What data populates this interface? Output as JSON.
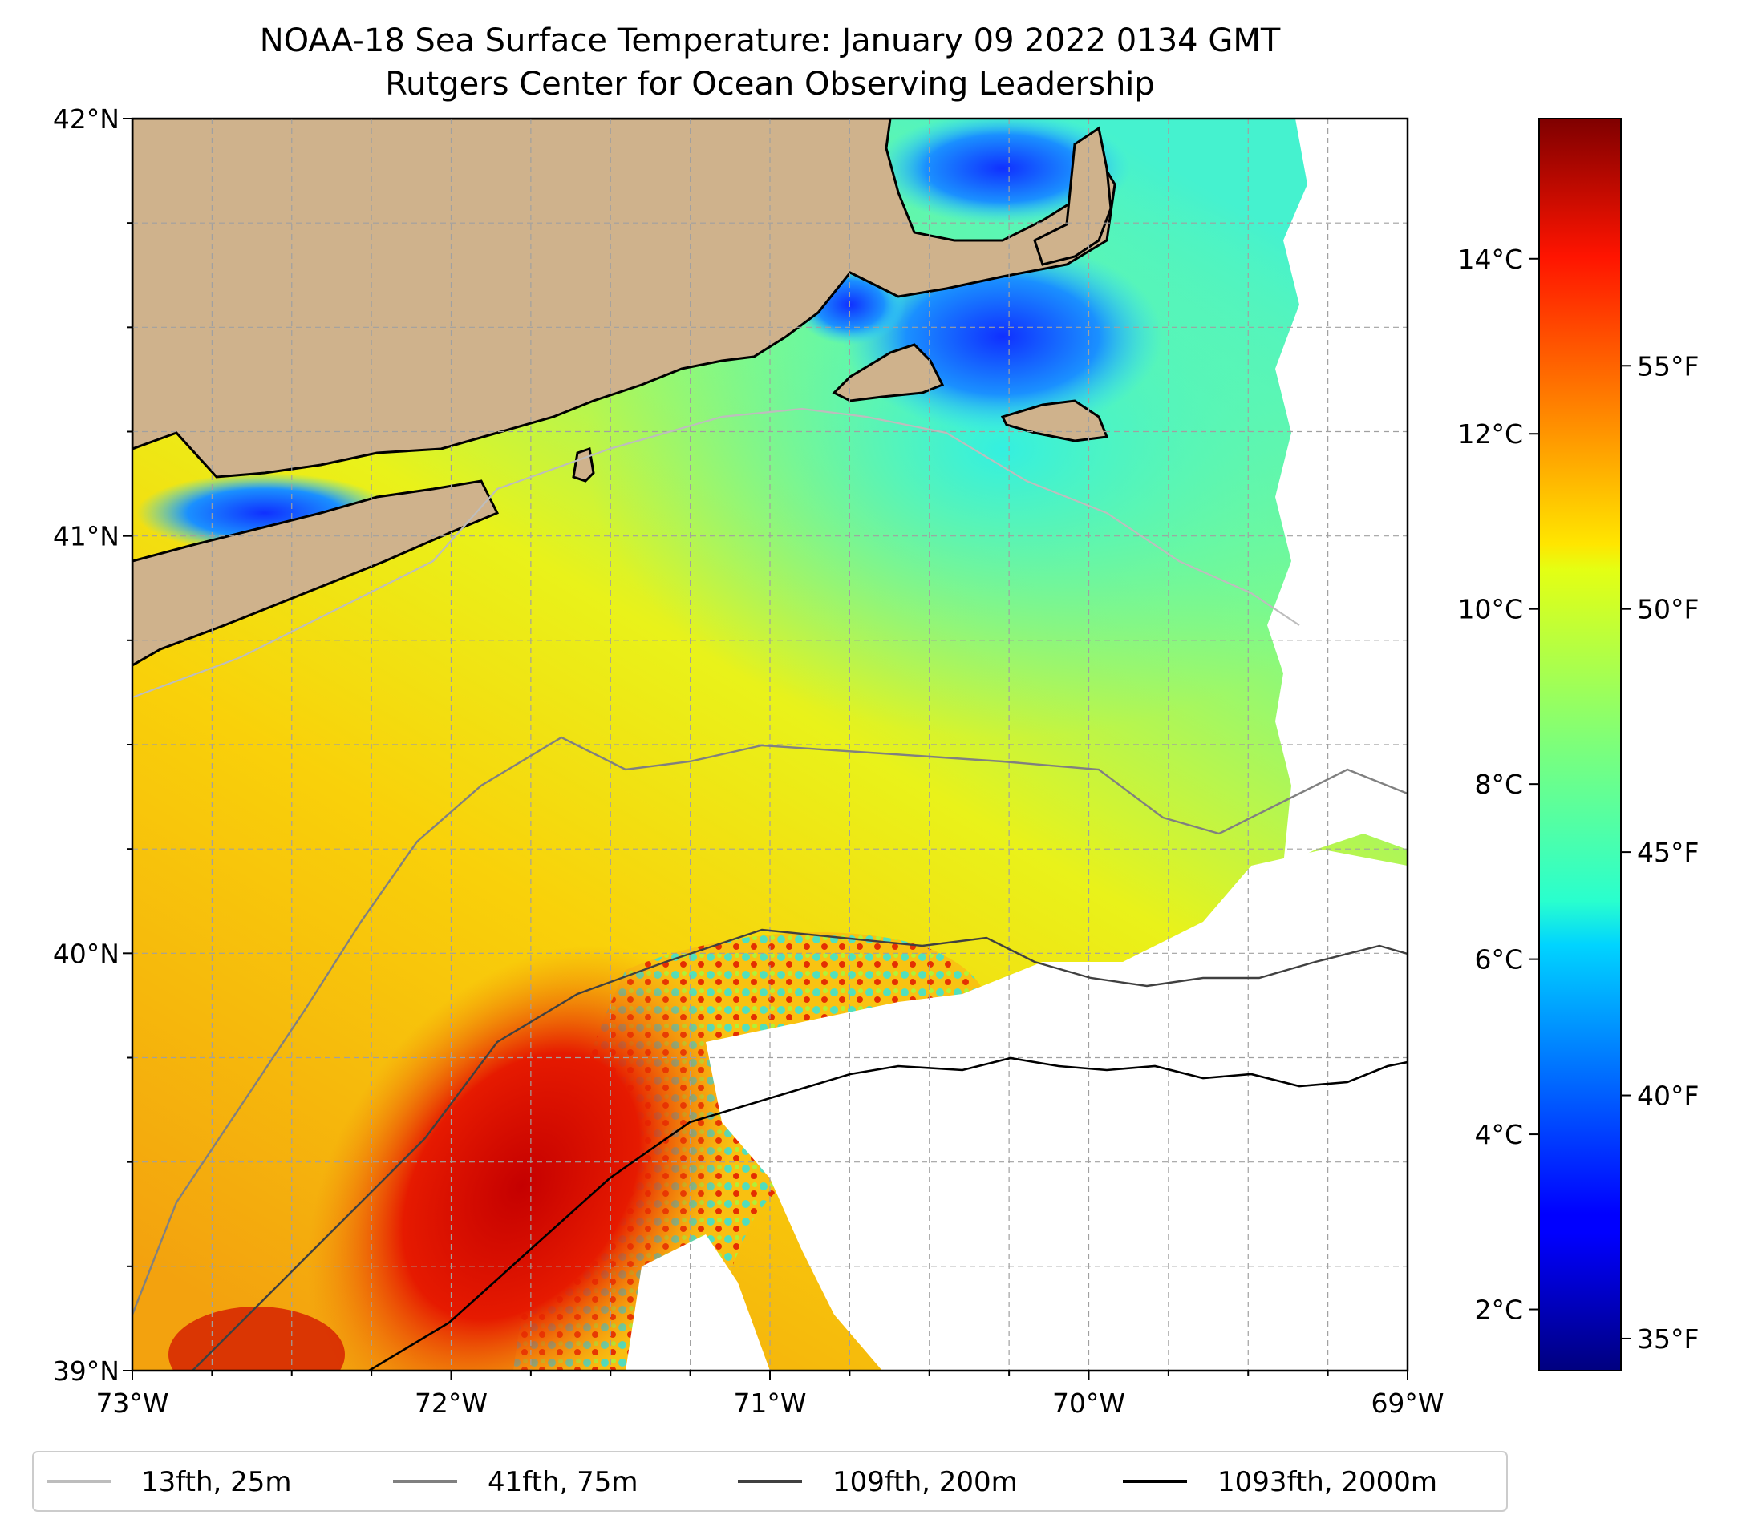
{
  "title": {
    "line1": "NOAA-18 Sea Surface Temperature: January 09 2022 0134 GMT",
    "line2": "Rutgers Center for Ocean Observing Leadership"
  },
  "map": {
    "lon_range": [
      -73,
      -69
    ],
    "lat_range": [
      39,
      42
    ],
    "x_ticks": [
      {
        "value": -73,
        "label": "73°W"
      },
      {
        "value": -72,
        "label": "72°W"
      },
      {
        "value": -71,
        "label": "71°W"
      },
      {
        "value": -70,
        "label": "70°W"
      },
      {
        "value": -69,
        "label": "69°W"
      }
    ],
    "y_ticks": [
      {
        "value": 42,
        "label": "42°N"
      },
      {
        "value": 41,
        "label": "41°N"
      },
      {
        "value": 40,
        "label": "40°N"
      },
      {
        "value": 39,
        "label": "39°N"
      }
    ],
    "land_color": "#cfb28c",
    "cloud_mask_color": "#ffffff",
    "grid": true
  },
  "colorbar": {
    "colormap": "jet",
    "range_c": [
      1.3,
      15.6
    ],
    "celsius_ticks": [
      {
        "value": 2,
        "label": "2°C"
      },
      {
        "value": 4,
        "label": "4°C"
      },
      {
        "value": 6,
        "label": "6°C"
      },
      {
        "value": 8,
        "label": "8°C"
      },
      {
        "value": 10,
        "label": "10°C"
      },
      {
        "value": 12,
        "label": "12°C"
      },
      {
        "value": 14,
        "label": "14°C"
      }
    ],
    "fahrenheit_ticks": [
      {
        "value": 35,
        "label": "35°F"
      },
      {
        "value": 40,
        "label": "40°F"
      },
      {
        "value": 45,
        "label": "45°F"
      },
      {
        "value": 50,
        "label": "50°F"
      },
      {
        "value": 55,
        "label": "55°F"
      }
    ]
  },
  "legend": {
    "placement": "bottom",
    "items": [
      {
        "label": "13fth, 25m",
        "color": "#bdbdbd"
      },
      {
        "label": "41fth, 75m",
        "color": "#808080"
      },
      {
        "label": "109fth, 200m",
        "color": "#404040"
      },
      {
        "label": "1093fth, 2000m",
        "color": "#000000"
      }
    ]
  }
}
